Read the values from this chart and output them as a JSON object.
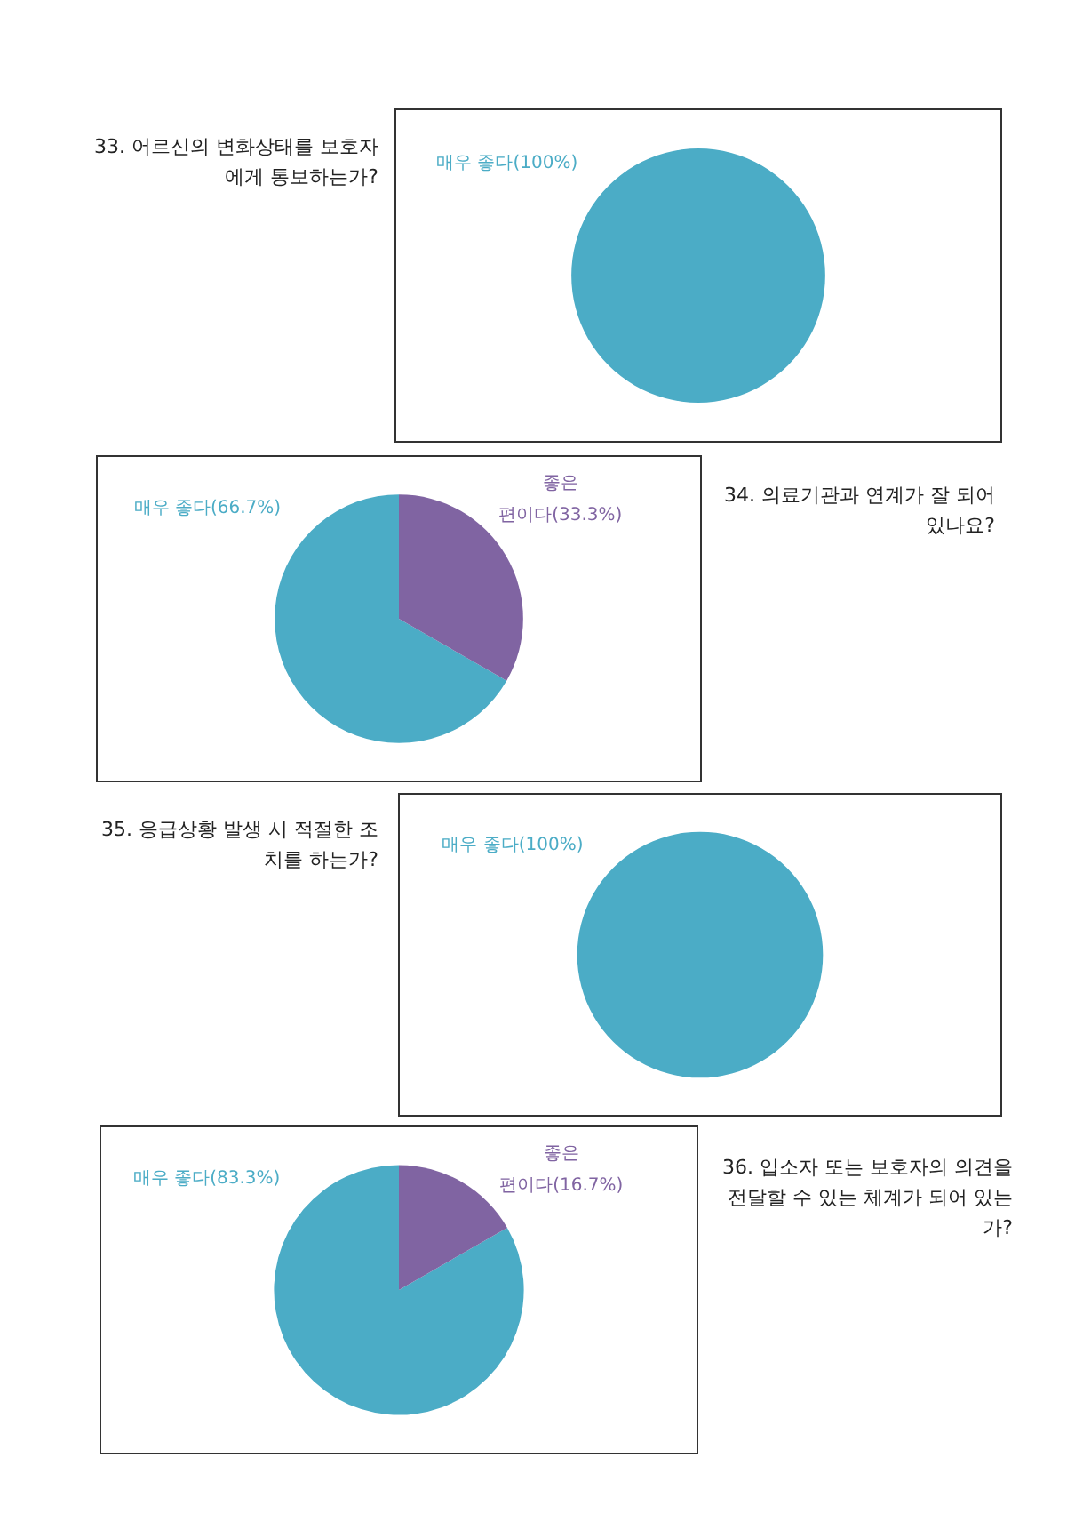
{
  "chart_data": [
    {
      "type": "pie",
      "title": "33. 어르신의 변화상태를 보호자에게 통보하는가?",
      "categories": [
        "매우 좋다"
      ],
      "values": [
        100
      ],
      "colors": [
        "#4bacc6"
      ],
      "value_labels": [
        "(100%)"
      ]
    },
    {
      "type": "pie",
      "title": "34. 의료기관과 연계가 잘 되어 있나요?",
      "categories": [
        "매우 좋다",
        "좋은 편이다"
      ],
      "values": [
        66.7,
        33.3
      ],
      "colors": [
        "#4bacc6",
        "#8064a2"
      ],
      "value_labels": [
        "(66.7%)",
        "(33.3%)"
      ]
    },
    {
      "type": "pie",
      "title": "35. 응급상황 발생 시 적절한 조치를 하는가?",
      "categories": [
        "매우 좋다"
      ],
      "values": [
        100
      ],
      "colors": [
        "#4bacc6"
      ],
      "value_labels": [
        "(100%)"
      ]
    },
    {
      "type": "pie",
      "title": "36. 입소자 또는 보호자의 의견을 전달할 수 있는 체계가 되어 있는가?",
      "categories": [
        "매우 좋다",
        "좋은 편이다"
      ],
      "values": [
        83.3,
        16.7
      ],
      "colors": [
        "#4bacc6",
        "#8064a2"
      ],
      "value_labels": [
        "(83.3%)",
        "(16.7%)"
      ]
    }
  ]
}
